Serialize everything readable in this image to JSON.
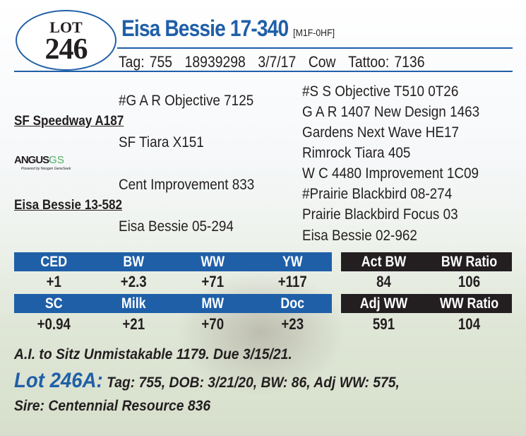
{
  "lot": {
    "label": "LOT",
    "number": "246"
  },
  "animal": {
    "name": "Eisa Bessie 17-340",
    "registration_code": "[M1F-0HF]",
    "tag": "Tag: 755",
    "reg_number": "18939298",
    "birth_date": "3/7/17",
    "sex": "Cow",
    "tattoo": "Tattoo: 7136"
  },
  "pedigree": {
    "left": {
      "sire_sire": "#G A R Objective 7125",
      "sire": "SF Speedway A187",
      "sire_dam": "SF Tiara X151",
      "dam_sire": "Cent Improvement 833",
      "dam": "Eisa Bessie 13-582",
      "dam_dam": "Eisa Bessie 05-294"
    },
    "right": [
      "#S S Objective T510 0T26",
      "G A R 1407 New Design 1463",
      "Gardens Next Wave HE17",
      "Rimrock Tiara 405",
      "W C 4480 Improvement 1C09",
      "#Prairie Blackbird 08-274",
      "Prairie Blackbird Focus 03",
      "Eisa Bessie 02-962"
    ]
  },
  "logo": {
    "brand": "ANGUS",
    "suffix": "GS",
    "tagline": "Powered by Neogen GeneSeek"
  },
  "epds": {
    "row1": {
      "headers": [
        "CED",
        "BW",
        "WW",
        "YW"
      ],
      "values": [
        "+1",
        "+2.3",
        "+71",
        "+117"
      ]
    },
    "row2": {
      "headers": [
        "SC",
        "Milk",
        "MW",
        "Doc"
      ],
      "values": [
        "+0.94",
        "+21",
        "+70",
        "+23"
      ]
    }
  },
  "performance": {
    "row1": {
      "headers": [
        "Act BW",
        "BW Ratio"
      ],
      "values": [
        "84",
        "106"
      ]
    },
    "row2": {
      "headers": [
        "Adj WW",
        "WW Ratio"
      ],
      "values": [
        "591",
        "104"
      ]
    }
  },
  "notes": {
    "ai": "A.I. to Sitz Unmistakable 1179. Due 3/15/21.",
    "calf_lot": "Lot 246A:",
    "calf_details": "Tag: 755, DOB: 3/21/20, BW: 86, Adj WW: 575,",
    "calf_sire": "Sire: Centennial Resource 836"
  },
  "colors": {
    "accent": "#1f5fa8",
    "dark": "#231f20"
  }
}
